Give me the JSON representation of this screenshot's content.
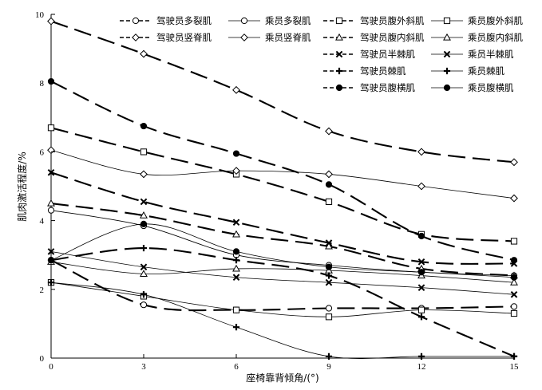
{
  "chart_data": {
    "type": "line",
    "title": "",
    "xlabel": "座椅靠背倾角/(°)",
    "ylabel": "肌肉激活程度/%",
    "x": [
      0,
      3,
      6,
      9,
      12,
      15
    ],
    "xlim": [
      0,
      15
    ],
    "ylim": [
      0,
      10
    ],
    "xticks": [
      "0",
      "3",
      "6",
      "9",
      "12",
      "15"
    ],
    "yticks": [
      "0",
      "2",
      "4",
      "6",
      "8",
      "10"
    ],
    "grid": false,
    "legend_position": "top-right",
    "series": [
      {
        "name": "驾驶员多裂肌",
        "marker": "circle-open",
        "dash": "long",
        "values": [
          2.85,
          1.55,
          1.4,
          1.45,
          1.45,
          1.5
        ]
      },
      {
        "name": "乘员多裂肌",
        "marker": "circle-open",
        "dash": "solid",
        "values": [
          4.3,
          3.85,
          3.0,
          2.7,
          2.5,
          2.4
        ]
      },
      {
        "name": "驾驶员腹外斜肌",
        "marker": "square-open",
        "dash": "long",
        "values": [
          6.7,
          6.0,
          5.35,
          4.55,
          3.6,
          3.4
        ]
      },
      {
        "name": "乘员腹外斜肌",
        "marker": "square-open",
        "dash": "solid",
        "values": [
          2.2,
          1.8,
          1.4,
          1.2,
          1.4,
          1.3
        ]
      },
      {
        "name": "驾驶员竖脊肌",
        "marker": "diamond-open",
        "dash": "long",
        "values": [
          9.8,
          8.85,
          7.8,
          6.6,
          6.0,
          5.7
        ]
      },
      {
        "name": "乘员竖脊肌",
        "marker": "diamond-open",
        "dash": "solid",
        "values": [
          6.05,
          5.35,
          5.45,
          5.35,
          5.0,
          4.65
        ]
      },
      {
        "name": "驾驶员腹内斜肌",
        "marker": "triangle-open",
        "dash": "long",
        "values": [
          4.5,
          4.15,
          3.6,
          3.25,
          2.6,
          2.4
        ]
      },
      {
        "name": "乘员腹内斜肌",
        "marker": "triangle-open",
        "dash": "solid",
        "values": [
          2.8,
          2.45,
          2.6,
          2.55,
          2.4,
          2.2
        ]
      },
      {
        "name": "驾驶员半棘肌",
        "marker": "x",
        "dash": "long",
        "values": [
          5.4,
          4.55,
          3.95,
          3.35,
          2.8,
          2.75
        ]
      },
      {
        "name": "乘员半棘肌",
        "marker": "x",
        "dash": "solid",
        "values": [
          3.1,
          2.65,
          2.35,
          2.2,
          2.05,
          1.85
        ]
      },
      {
        "name": "驾驶员棘肌",
        "marker": "plus",
        "dash": "long",
        "values": [
          2.85,
          3.2,
          2.85,
          2.4,
          1.2,
          0.05
        ]
      },
      {
        "name": "乘员棘肌",
        "marker": "plus",
        "dash": "solid",
        "values": [
          2.2,
          1.85,
          0.9,
          0.05,
          0.05,
          0.05
        ]
      },
      {
        "name": "驾驶员腹横肌",
        "marker": "circle-filled",
        "dash": "long",
        "values": [
          8.05,
          6.75,
          5.95,
          5.05,
          3.55,
          2.85
        ]
      },
      {
        "name": "乘员腹横肌",
        "marker": "circle-filled",
        "dash": "solid",
        "values": [
          2.85,
          3.9,
          3.1,
          2.65,
          2.5,
          2.35
        ]
      }
    ]
  }
}
